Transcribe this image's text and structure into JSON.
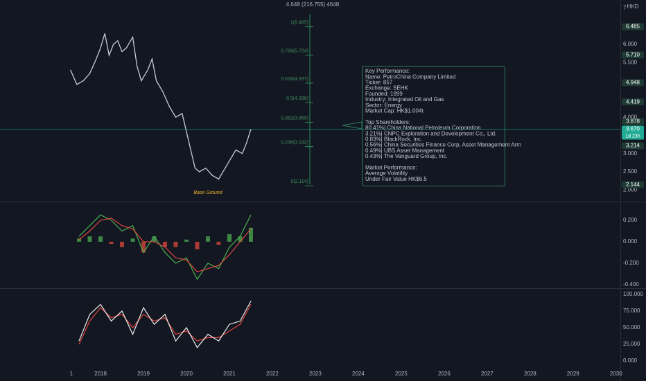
{
  "header": {
    "ohlc": "4.648 (216.755) 4648",
    "currency": "HKD"
  },
  "xaxis": {
    "xlim": [
      2015.66,
      2030.1
    ],
    "xticks": [
      {
        "value": 2017.32,
        "label": "1"
      },
      2018,
      2019,
      2020,
      2021,
      2022,
      2023,
      2024,
      2025,
      2026,
      2027,
      2028,
      2029,
      2030
    ]
  },
  "chart_data": [
    {
      "type": "line",
      "x": [
        2017.3,
        2017.45,
        2017.6,
        2017.75,
        2017.9,
        2018.0,
        2018.1,
        2018.2,
        2018.3,
        2018.4,
        2018.5,
        2018.6,
        2018.75,
        2018.85,
        2018.95,
        2019.1,
        2019.2,
        2019.3,
        2019.45,
        2019.6,
        2019.75,
        2019.9,
        2020.0,
        2020.1,
        2020.2,
        2020.3,
        2020.45,
        2020.6,
        2020.75,
        2020.9,
        2021.0,
        2021.15,
        2021.3,
        2021.4,
        2021.5
      ],
      "values": [
        5.3,
        4.9,
        5.0,
        5.2,
        5.6,
        5.9,
        6.3,
        5.7,
        6.0,
        6.1,
        5.8,
        5.9,
        6.2,
        5.4,
        5.0,
        5.3,
        5.6,
        5.0,
        4.7,
        4.3,
        4.0,
        4.1,
        3.6,
        3.1,
        2.6,
        2.5,
        2.6,
        2.4,
        2.3,
        2.6,
        2.8,
        3.1,
        3.0,
        3.3,
        3.67
      ],
      "color": "#c8ccd4",
      "ylim": [
        1.7,
        7.22
      ],
      "yticks": [
        {
          "value": 2,
          "label": "2.000"
        },
        {
          "value": 2.5,
          "label": "2.500"
        },
        {
          "value": 3,
          "label": "3.000"
        },
        {
          "value": 4,
          "label": "4.000"
        },
        {
          "value": 5.5,
          "label": "5.500"
        },
        {
          "value": 6,
          "label": "6.000"
        },
        7
      ],
      "price_labels": [
        6.485,
        {
          "value": 5.71,
          "label": "5.710"
        },
        4.948,
        4.419,
        3.878,
        3.214,
        2.144
      ],
      "last_price": {
        "value": 3.67,
        "label": "3.670"
      },
      "countdown": "1d 23h",
      "fib_levels": [
        {
          "value": 6.485,
          "label": "1(6.485)"
        },
        {
          "value": 5.704,
          "label": "0.786(5.704)"
        },
        {
          "value": 4.937,
          "label": "0.618(4.937)"
        },
        {
          "value": 4.398,
          "label": "0.5(4.398)"
        },
        {
          "value": 3.859,
          "label": "0.382(3.859)"
        },
        {
          "value": 3.192,
          "label": "0.236(3.192)"
        },
        {
          "value": 2.114,
          "label": "0(2.114)"
        }
      ],
      "annotation": "Base Ground"
    },
    {
      "type": "macd",
      "x": [
        2017.5,
        2017.75,
        2018.0,
        2018.25,
        2018.5,
        2018.75,
        2019.0,
        2019.25,
        2019.5,
        2019.75,
        2020.0,
        2020.25,
        2020.5,
        2020.75,
        2021.0,
        2021.25,
        2021.5
      ],
      "series": [
        {
          "color": "#4caf50",
          "values": [
            0.05,
            0.15,
            0.25,
            0.2,
            0.1,
            0.15,
            -0.1,
            0.05,
            -0.1,
            -0.2,
            -0.15,
            -0.35,
            -0.2,
            -0.25,
            -0.05,
            0.05,
            0.25
          ]
        },
        {
          "color": "#e0483e",
          "values": [
            0.02,
            0.1,
            0.2,
            0.22,
            0.15,
            0.12,
            0.0,
            0.0,
            -0.05,
            -0.15,
            -0.17,
            -0.28,
            -0.25,
            -0.22,
            -0.12,
            0.0,
            0.12
          ]
        }
      ],
      "histogram": [
        0.03,
        0.05,
        0.05,
        -0.02,
        -0.05,
        0.03,
        -0.1,
        0.05,
        -0.05,
        -0.05,
        0.02,
        -0.07,
        0.05,
        -0.03,
        0.07,
        0.05,
        0.13
      ],
      "ylim": [
        -0.426,
        0.361
      ],
      "yticks": [
        {
          "value": 0.2,
          "label": "0.200"
        },
        {
          "value": 0,
          "label": "0.000"
        },
        {
          "value": -0.2,
          "label": "-0.200"
        },
        {
          "value": -0.4,
          "label": "-0.400"
        }
      ]
    },
    {
      "type": "line",
      "x": [
        2017.5,
        2017.75,
        2018.0,
        2018.25,
        2018.5,
        2018.75,
        2019.0,
        2019.25,
        2019.5,
        2019.75,
        2020.0,
        2020.25,
        2020.5,
        2020.75,
        2021.0,
        2021.25,
        2021.5
      ],
      "series": [
        {
          "color": "#e0483e",
          "values": [
            25,
            60,
            80,
            65,
            70,
            50,
            70,
            60,
            65,
            40,
            45,
            30,
            35,
            35,
            45,
            55,
            85
          ]
        },
        {
          "color": "#f0f0f0",
          "values": [
            30,
            70,
            85,
            60,
            75,
            40,
            80,
            55,
            70,
            30,
            50,
            20,
            40,
            30,
            55,
            60,
            90
          ]
        }
      ],
      "ylim": [
        -9.4,
        107.3
      ],
      "yticks": [
        {
          "value": 100,
          "label": "100.000"
        },
        {
          "value": 75,
          "label": "75.000"
        },
        {
          "value": 50,
          "label": "50.000"
        },
        {
          "value": 25,
          "label": "25.000"
        },
        {
          "value": 0,
          "label": "0.000"
        }
      ]
    }
  ],
  "info_box": {
    "sections": [
      [
        "Key Performance:",
        "Name: PetroChina Company Limited",
        "Ticker: 857",
        "Exchange: SEHK",
        "Founded: 1999",
        "Industry: Integrated Oil and Gas",
        "Sector: Energy",
        "Market Cap: HK$1.004t"
      ],
      [
        "Top Shareholders:",
        "80.41%| China National Petroleum Corporation",
        "3.21%| CNPC Exploration and Development Co., Ltd.",
        "0.83%| BlackRock, Inc.",
        "0.56%| China Securities Finance Corp, Asset Management Arm",
        "0.49%| UBS Asset Management",
        "0.43%| The Vanguard Group, Inc."
      ],
      [
        "Market Performance:",
        "Average Volatility",
        "Under Fair Value HK$6.5"
      ]
    ]
  }
}
